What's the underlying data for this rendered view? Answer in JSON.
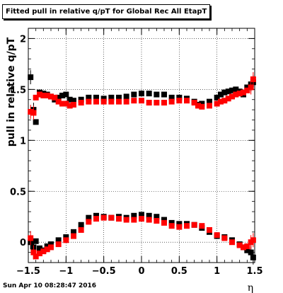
{
  "chart_data": {
    "type": "scatter",
    "title": "Fitted pull in relative q/pT  for Global Rec All EtapT",
    "xlabel": "η",
    "ylabel": "pull in relative q/pT",
    "xlim": [
      -1.5,
      1.5
    ],
    "ylim": [
      -0.2,
      2.1
    ],
    "x_ticks": [
      -1.5,
      -1,
      -0.5,
      0,
      0.5,
      1,
      1.5
    ],
    "x_tick_labels": [
      "−1.5",
      "−1",
      "−0.5",
      "0",
      "0.5",
      "1",
      "1.5"
    ],
    "y_ticks": [
      0,
      0.5,
      1,
      1.5,
      2
    ],
    "y_tick_labels": [
      "0",
      "0.5",
      "1",
      "1.5",
      "2"
    ],
    "grid": true,
    "colors": {
      "black_series": "#000000",
      "red_series": "#ff0000"
    },
    "series": [
      {
        "color": "black",
        "role": "upper",
        "x": [
          -1.47,
          -1.43,
          -1.4,
          -1.35,
          -1.3,
          -1.25,
          -1.2,
          -1.15,
          -1.1,
          -1.05,
          -1.0,
          -0.95,
          -0.9,
          -0.8,
          -0.7,
          -0.6,
          -0.5,
          -0.4,
          -0.3,
          -0.2,
          -0.1,
          0.0,
          0.1,
          0.2,
          0.3,
          0.4,
          0.5,
          0.6,
          0.7,
          0.75,
          0.8,
          0.9,
          1.0,
          1.05,
          1.1,
          1.15,
          1.2,
          1.25,
          1.3,
          1.35,
          1.4,
          1.45,
          1.48
        ],
        "y": [
          1.62,
          1.3,
          1.18,
          1.47,
          1.46,
          1.45,
          1.43,
          1.4,
          1.42,
          1.44,
          1.45,
          1.4,
          1.39,
          1.4,
          1.42,
          1.42,
          1.41,
          1.42,
          1.42,
          1.43,
          1.45,
          1.46,
          1.46,
          1.45,
          1.45,
          1.42,
          1.42,
          1.41,
          1.38,
          1.35,
          1.36,
          1.38,
          1.42,
          1.45,
          1.47,
          1.48,
          1.49,
          1.5,
          1.48,
          1.45,
          1.52,
          1.55,
          1.57
        ]
      },
      {
        "color": "red",
        "role": "upper",
        "x": [
          -1.47,
          -1.43,
          -1.4,
          -1.35,
          -1.3,
          -1.25,
          -1.2,
          -1.15,
          -1.1,
          -1.05,
          -1.0,
          -0.95,
          -0.9,
          -0.8,
          -0.7,
          -0.6,
          -0.5,
          -0.4,
          -0.3,
          -0.2,
          -0.1,
          0.0,
          0.1,
          0.2,
          0.3,
          0.4,
          0.5,
          0.6,
          0.7,
          0.75,
          0.8,
          0.9,
          1.0,
          1.05,
          1.1,
          1.15,
          1.2,
          1.25,
          1.3,
          1.35,
          1.4,
          1.45,
          1.48
        ],
        "y": [
          1.28,
          1.27,
          1.42,
          1.45,
          1.44,
          1.44,
          1.43,
          1.42,
          1.38,
          1.36,
          1.36,
          1.34,
          1.35,
          1.37,
          1.38,
          1.38,
          1.38,
          1.38,
          1.38,
          1.38,
          1.39,
          1.39,
          1.37,
          1.37,
          1.37,
          1.38,
          1.39,
          1.39,
          1.37,
          1.34,
          1.33,
          1.34,
          1.36,
          1.38,
          1.39,
          1.41,
          1.43,
          1.45,
          1.46,
          1.47,
          1.49,
          1.52,
          1.6
        ]
      },
      {
        "color": "black",
        "role": "lower",
        "x": [
          -1.47,
          -1.43,
          -1.4,
          -1.35,
          -1.3,
          -1.25,
          -1.2,
          -1.1,
          -1.0,
          -0.9,
          -0.8,
          -0.7,
          -0.6,
          -0.5,
          -0.4,
          -0.3,
          -0.2,
          -0.1,
          0.0,
          0.1,
          0.2,
          0.3,
          0.4,
          0.5,
          0.6,
          0.7,
          0.8,
          0.9,
          1.0,
          1.1,
          1.2,
          1.3,
          1.35,
          1.4,
          1.45,
          1.48
        ],
        "y": [
          0.0,
          -0.05,
          0.01,
          -0.06,
          -0.08,
          -0.04,
          -0.02,
          0.02,
          0.05,
          0.1,
          0.17,
          0.24,
          0.26,
          0.25,
          0.24,
          0.25,
          0.24,
          0.26,
          0.27,
          0.26,
          0.25,
          0.22,
          0.19,
          0.18,
          0.18,
          0.17,
          0.14,
          0.1,
          0.06,
          0.05,
          0.02,
          -0.02,
          -0.05,
          -0.08,
          -0.1,
          -0.15
        ]
      },
      {
        "color": "red",
        "role": "lower",
        "x": [
          -1.47,
          -1.43,
          -1.4,
          -1.35,
          -1.3,
          -1.25,
          -1.2,
          -1.1,
          -1.0,
          -0.9,
          -0.8,
          -0.7,
          -0.6,
          -0.5,
          -0.4,
          -0.3,
          -0.2,
          -0.1,
          0.0,
          0.1,
          0.2,
          0.3,
          0.4,
          0.5,
          0.6,
          0.7,
          0.8,
          0.9,
          1.0,
          1.1,
          1.2,
          1.3,
          1.35,
          1.4,
          1.45,
          1.48
        ],
        "y": [
          0.04,
          -0.1,
          -0.14,
          -0.11,
          -0.09,
          -0.07,
          -0.05,
          -0.02,
          0.02,
          0.06,
          0.12,
          0.2,
          0.23,
          0.24,
          0.24,
          0.23,
          0.22,
          0.22,
          0.23,
          0.22,
          0.21,
          0.19,
          0.16,
          0.15,
          0.16,
          0.17,
          0.16,
          0.12,
          0.07,
          0.04,
          0.0,
          -0.03,
          -0.05,
          -0.04,
          0.0,
          0.02
        ]
      }
    ]
  },
  "footer": {
    "timestamp": "Sun Apr 10 08:28:47 2016"
  }
}
